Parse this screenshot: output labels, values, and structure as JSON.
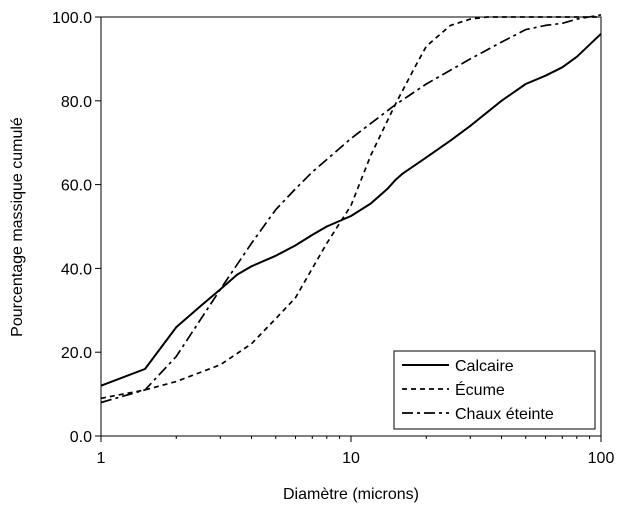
{
  "chart_data": {
    "type": "line",
    "title": "",
    "xlabel": "Diamètre (microns)",
    "ylabel": "Pourcentage massique cumulé",
    "xscale": "log",
    "xlim": [
      1,
      100
    ],
    "ylim": [
      0,
      100
    ],
    "xticks": [
      1,
      10,
      100
    ],
    "xtick_labels": [
      "1",
      "10",
      "100"
    ],
    "yticks": [
      0,
      20,
      40,
      60,
      80,
      100
    ],
    "ytick_labels": [
      "0.0",
      "20.0",
      "40.0",
      "60.0",
      "80.0",
      "100.0"
    ],
    "grid": false,
    "legend_position": "bottom-right",
    "series": [
      {
        "name": "Calcaire",
        "style": "solid",
        "x": [
          1,
          1.5,
          2,
          2.5,
          3,
          3.5,
          4,
          5,
          6,
          7,
          8,
          10,
          12,
          14,
          15,
          16,
          20,
          25,
          30,
          40,
          50,
          60,
          70,
          80,
          100
        ],
        "y": [
          12,
          16,
          26,
          31,
          35,
          38.5,
          40.5,
          43,
          45.5,
          48,
          50,
          52.5,
          55.5,
          59,
          61,
          62.5,
          66.5,
          70.5,
          74,
          80,
          84,
          86,
          88,
          90.5,
          96
        ]
      },
      {
        "name": "Écume",
        "style": "dashed",
        "x": [
          1,
          1.5,
          2,
          3,
          4,
          5,
          6,
          7,
          8,
          10,
          12,
          15,
          18,
          20,
          25,
          30,
          35,
          40,
          100
        ],
        "y": [
          9,
          11,
          13,
          17,
          22,
          28,
          33,
          40,
          46,
          55,
          67,
          79,
          88,
          93,
          98,
          99.5,
          100,
          100,
          100
        ]
      },
      {
        "name": "Chaux éteinte",
        "style": "dash-dot",
        "x": [
          1,
          1.5,
          2,
          3,
          4,
          5,
          6,
          7,
          8,
          10,
          15,
          20,
          30,
          40,
          50,
          60,
          70,
          80,
          100
        ],
        "y": [
          8,
          11,
          19,
          35,
          46,
          54,
          59,
          63,
          66,
          71,
          79,
          84,
          90,
          94,
          97,
          98,
          98.5,
          99.5,
          100.5
        ]
      }
    ]
  }
}
